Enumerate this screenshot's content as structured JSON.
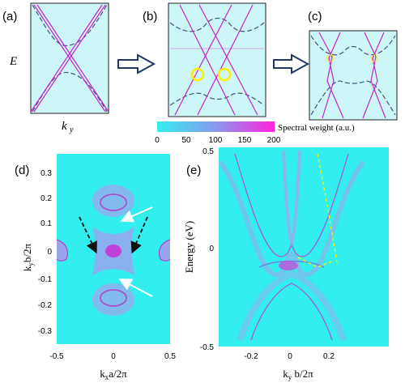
{
  "panels": {
    "a": {
      "label": "(a)",
      "energy_label": "E",
      "k_label": "k",
      "k_sub": "y"
    },
    "b": {
      "label": "(b)"
    },
    "c": {
      "label": "(c)"
    },
    "d": {
      "label": "(d)",
      "ylabel_main": "k",
      "ylabel_sub": "y",
      "ylabel_rest": "b/2π",
      "xlabel_main": "k",
      "xlabel_sub": "x",
      "xlabel_rest": "a/2π",
      "yticks": [
        "0.3",
        "0.2",
        "0.1",
        "0",
        "-0.1",
        "-0.2",
        "-0.3"
      ],
      "xticks": [
        "-0.5",
        "0",
        "0.5"
      ]
    },
    "e": {
      "label": "(e)",
      "ylabel": "Energy (eV)",
      "yticks": [
        "0.5",
        "0",
        "-0.5"
      ],
      "xticks": [
        "-0.2",
        "0",
        "0.2"
      ],
      "xlabel_main": "k",
      "xlabel_sub": "y",
      "xlabel_rest": " b/2π"
    }
  },
  "colorbar": {
    "title": "Spectral weight (a.u.)",
    "ticks": [
      "0",
      "50",
      "100",
      "150",
      "200"
    ],
    "color_low": "#33eeee",
    "color_high": "#ff22dd"
  },
  "colors": {
    "background": "#ccf6f7",
    "map_bg": "#33eeee",
    "band_solid": "#cc22cc",
    "band_dashed": "#445577",
    "highlight": "#ffee00",
    "arrow": "#223366"
  }
}
